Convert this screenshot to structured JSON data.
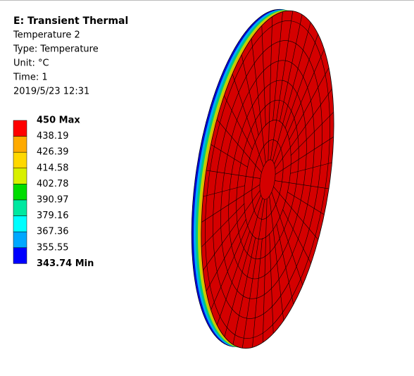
{
  "header": {
    "title": "E: Transient Thermal",
    "lines": [
      "Temperature 2",
      "Type: Temperature",
      "Unit: °C",
      "Time: 1",
      "2019/5/23 12:31"
    ]
  },
  "legend": {
    "labels": [
      "450 Max",
      "438.19",
      "426.39",
      "414.58",
      "402.78",
      "390.97",
      "379.16",
      "367.36",
      "355.55",
      "343.74 Min"
    ],
    "colors": [
      "#ff0000",
      "#ffaa00",
      "#ffd800",
      "#d8f000",
      "#00dd00",
      "#00e8a0",
      "#00ffff",
      "#00a8ff",
      "#0000ff"
    ]
  }
}
